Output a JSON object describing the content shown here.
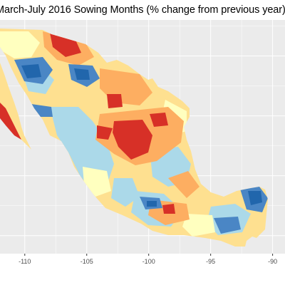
{
  "chart_data": {
    "type": "heatmap",
    "title": "March-July 2016 Sowing Months (% change from previous year)",
    "xlabel": "",
    "ylabel": "",
    "x_ticks": [
      -110,
      -105,
      -100,
      -95,
      -90
    ],
    "x_tick_labels": [
      "-110",
      "-105",
      "-100",
      "-95",
      "-90"
    ],
    "xlim": [
      -112,
      -89
    ],
    "ylim": [
      13.5,
      33
    ],
    "grid": true,
    "legend": "none",
    "colors": {
      "panel_background": "#ebebeb",
      "gridline": "#ffffff",
      "strong_decrease": "#2166ac",
      "moderate_decrease": "#4a86c5",
      "slight_decrease": "#abd9e9",
      "no_change": "#ffffbf",
      "slight_increase": "#fee090",
      "moderate_increase": "#fdae61",
      "strong_increase": "#d73027"
    }
  }
}
